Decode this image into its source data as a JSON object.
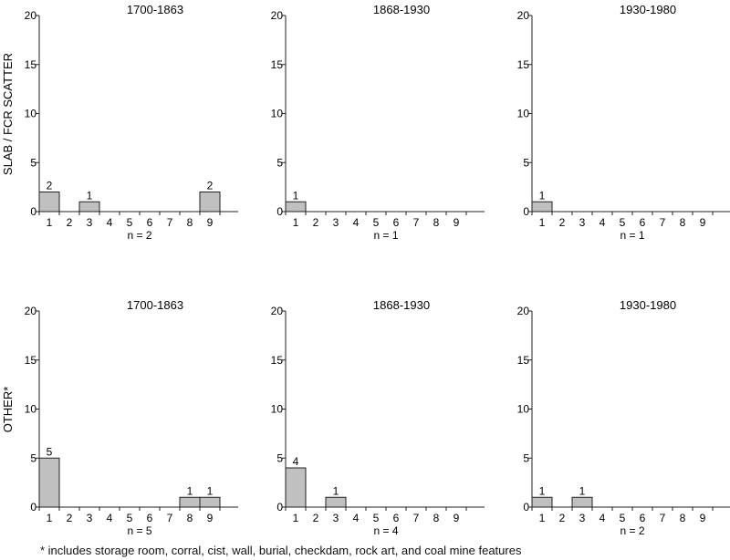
{
  "row_labels": [
    "SLAB / FCR SCATTER",
    "OTHER*"
  ],
  "footnote": "* includes storage room, corral, cist, wall, burial, checkdam, rock art, and coal mine features",
  "bar_color": "#c0c0c0",
  "chart_data": [
    {
      "type": "bar",
      "row": 0,
      "col": 0,
      "title": "1700-1863",
      "n_label": "n = 2",
      "categories": [
        "1",
        "2",
        "3",
        "4",
        "5",
        "6",
        "7",
        "8",
        "9"
      ],
      "values": [
        2,
        0,
        1,
        0,
        0,
        0,
        0,
        0,
        2
      ],
      "data_labels": [
        "2",
        "",
        "1",
        "",
        "",
        "",
        "",
        "",
        "2"
      ],
      "ylim": [
        0,
        20
      ],
      "yticks": [
        0,
        5,
        10,
        15,
        20
      ],
      "grid": false,
      "xlabel": "",
      "ylabel": ""
    },
    {
      "type": "bar",
      "row": 0,
      "col": 1,
      "title": "1868-1930",
      "n_label": "n = 1",
      "categories": [
        "1",
        "2",
        "3",
        "4",
        "5",
        "6",
        "7",
        "8",
        "9"
      ],
      "values": [
        1,
        0,
        0,
        0,
        0,
        0,
        0,
        0,
        0
      ],
      "data_labels": [
        "1",
        "",
        "",
        "",
        "",
        "",
        "",
        "",
        ""
      ],
      "ylim": [
        0,
        20
      ],
      "yticks": [
        0,
        5,
        10,
        15,
        20
      ],
      "grid": false,
      "xlabel": "",
      "ylabel": ""
    },
    {
      "type": "bar",
      "row": 0,
      "col": 2,
      "title": "1930-1980",
      "n_label": "n = 1",
      "categories": [
        "1",
        "2",
        "3",
        "4",
        "5",
        "6",
        "7",
        "8",
        "9"
      ],
      "values": [
        1,
        0,
        0,
        0,
        0,
        0,
        0,
        0,
        0
      ],
      "data_labels": [
        "1",
        "",
        "",
        "",
        "",
        "",
        "",
        "",
        ""
      ],
      "ylim": [
        0,
        20
      ],
      "yticks": [
        0,
        5,
        10,
        15,
        20
      ],
      "grid": false,
      "xlabel": "",
      "ylabel": ""
    },
    {
      "type": "bar",
      "row": 1,
      "col": 0,
      "title": "1700-1863",
      "n_label": "n = 5",
      "categories": [
        "1",
        "2",
        "3",
        "4",
        "5",
        "6",
        "7",
        "8",
        "9"
      ],
      "values": [
        5,
        0,
        0,
        0,
        0,
        0,
        0,
        1,
        1
      ],
      "data_labels": [
        "5",
        "",
        "",
        "",
        "",
        "",
        "",
        "1",
        "1"
      ],
      "ylim": [
        0,
        20
      ],
      "yticks": [
        0,
        5,
        10,
        15,
        20
      ],
      "grid": false,
      "xlabel": "",
      "ylabel": ""
    },
    {
      "type": "bar",
      "row": 1,
      "col": 1,
      "title": "1868-1930",
      "n_label": "n = 4",
      "categories": [
        "1",
        "2",
        "3",
        "4",
        "5",
        "6",
        "7",
        "8",
        "9"
      ],
      "values": [
        4,
        0,
        1,
        0,
        0,
        0,
        0,
        0,
        0
      ],
      "data_labels": [
        "4",
        "",
        "1",
        "",
        "",
        "",
        "",
        "",
        ""
      ],
      "ylim": [
        0,
        20
      ],
      "yticks": [
        0,
        5,
        10,
        15,
        20
      ],
      "grid": false,
      "xlabel": "",
      "ylabel": ""
    },
    {
      "type": "bar",
      "row": 1,
      "col": 2,
      "title": "1930-1980",
      "n_label": "n = 2",
      "categories": [
        "1",
        "2",
        "3",
        "4",
        "5",
        "6",
        "7",
        "8",
        "9"
      ],
      "values": [
        1,
        0,
        1,
        0,
        0,
        0,
        0,
        0,
        0
      ],
      "data_labels": [
        "1",
        "",
        "1",
        "",
        "",
        "",
        "",
        "",
        ""
      ],
      "ylim": [
        0,
        20
      ],
      "yticks": [
        0,
        5,
        10,
        15,
        20
      ],
      "grid": false,
      "xlabel": "",
      "ylabel": ""
    }
  ]
}
